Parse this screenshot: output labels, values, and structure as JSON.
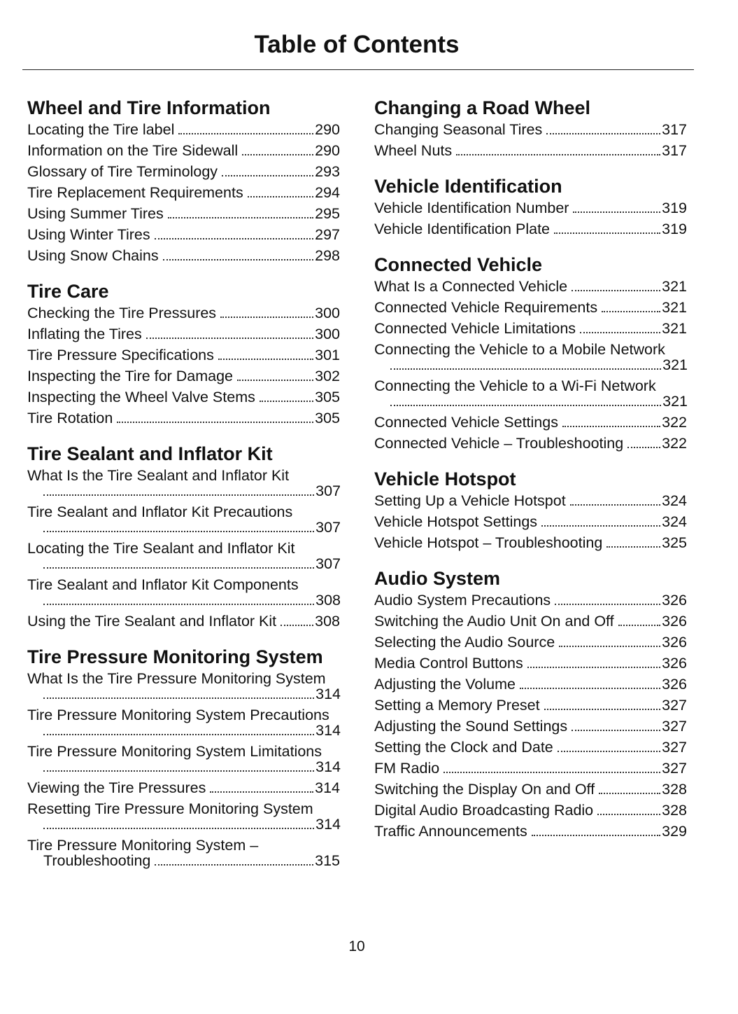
{
  "title": "Table of Contents",
  "page_number": "10",
  "columns": [
    {
      "sections": [
        {
          "heading": "Wheel and Tire Information",
          "entries": [
            {
              "title": "Locating the Tire label",
              "page": "290"
            },
            {
              "title": "Information on the Tire Sidewall",
              "page": "290"
            },
            {
              "title": "Glossary of Tire Terminology",
              "page": "293"
            },
            {
              "title": "Tire Replacement Requirements",
              "page": "294"
            },
            {
              "title": "Using Summer Tires",
              "page": "295"
            },
            {
              "title": "Using Winter Tires",
              "page": "297"
            },
            {
              "title": "Using Snow Chains",
              "page": "298"
            }
          ]
        },
        {
          "heading": "Tire Care",
          "entries": [
            {
              "title": "Checking the Tire Pressures",
              "page": "300"
            },
            {
              "title": "Inflating the Tires",
              "page": "300"
            },
            {
              "title": "Tire Pressure Specifications",
              "page": "301"
            },
            {
              "title": "Inspecting the Tire for Damage",
              "page": "302"
            },
            {
              "title": "Inspecting the Wheel Valve Stems",
              "page": "305"
            },
            {
              "title": "Tire Rotation",
              "page": "305"
            }
          ]
        },
        {
          "heading": "Tire Sealant and Inflator Kit",
          "entries": [
            {
              "title": "What Is the Tire Sealant and Inflator Kit",
              "page": "307"
            },
            {
              "title": "Tire Sealant and Inflator Kit Precautions",
              "page": "307"
            },
            {
              "title": "Locating the Tire Sealant and Inflator Kit",
              "page": "307"
            },
            {
              "title": "Tire Sealant and Inflator Kit Components",
              "page": "308"
            },
            {
              "title": "Using the Tire Sealant and Inflator Kit",
              "page": "308"
            }
          ]
        },
        {
          "heading": "Tire Pressure Monitoring System",
          "entries": [
            {
              "title": "What Is the Tire Pressure Monitoring System",
              "page": "314"
            },
            {
              "title": "Tire Pressure Monitoring System Precautions",
              "page": "314"
            },
            {
              "title": "Tire Pressure Monitoring System Limitations",
              "page": "314"
            },
            {
              "title": "Viewing the Tire Pressures",
              "page": "314"
            },
            {
              "title": "Resetting Tire Pressure Monitoring System",
              "page": "314"
            },
            {
              "title": "Tire Pressure Monitoring System – Troubleshooting",
              "page": "315"
            }
          ]
        }
      ]
    },
    {
      "sections": [
        {
          "heading": "Changing a Road Wheel",
          "entries": [
            {
              "title": "Changing Seasonal Tires",
              "page": "317"
            },
            {
              "title": "Wheel Nuts",
              "page": "317"
            }
          ]
        },
        {
          "heading": "Vehicle Identification",
          "entries": [
            {
              "title": "Vehicle Identification Number",
              "page": "319"
            },
            {
              "title": "Vehicle Identification Plate",
              "page": "319"
            }
          ]
        },
        {
          "heading": "Connected Vehicle",
          "entries": [
            {
              "title": "What Is a Connected Vehicle",
              "page": "321"
            },
            {
              "title": "Connected Vehicle Requirements",
              "page": "321"
            },
            {
              "title": "Connected Vehicle Limitations",
              "page": "321"
            },
            {
              "title": "Connecting the Vehicle to a Mobile Network",
              "page": "321"
            },
            {
              "title": "Connecting the Vehicle to a Wi-Fi Network",
              "page": "321"
            },
            {
              "title": "Connected Vehicle Settings",
              "page": "322"
            },
            {
              "title": "Connected Vehicle – Troubleshooting",
              "page": "322"
            }
          ]
        },
        {
          "heading": "Vehicle Hotspot",
          "entries": [
            {
              "title": "Setting Up a Vehicle Hotspot",
              "page": "324"
            },
            {
              "title": "Vehicle Hotspot Settings",
              "page": "324"
            },
            {
              "title": "Vehicle Hotspot – Troubleshooting",
              "page": "325"
            }
          ]
        },
        {
          "heading": "Audio System",
          "entries": [
            {
              "title": "Audio System Precautions",
              "page": "326"
            },
            {
              "title": "Switching the Audio Unit On and Off",
              "page": "326"
            },
            {
              "title": "Selecting the Audio Source",
              "page": "326"
            },
            {
              "title": "Media Control Buttons",
              "page": "326"
            },
            {
              "title": "Adjusting the Volume",
              "page": "326"
            },
            {
              "title": "Setting a Memory Preset",
              "page": "327"
            },
            {
              "title": "Adjusting the Sound Settings",
              "page": "327"
            },
            {
              "title": "Setting the Clock and Date",
              "page": "327"
            },
            {
              "title": "FM Radio",
              "page": "327"
            },
            {
              "title": "Switching the Display On and Off",
              "page": "328"
            },
            {
              "title": "Digital Audio Broadcasting Radio",
              "page": "328"
            },
            {
              "title": "Traffic Announcements",
              "page": "329"
            }
          ]
        }
      ]
    }
  ]
}
